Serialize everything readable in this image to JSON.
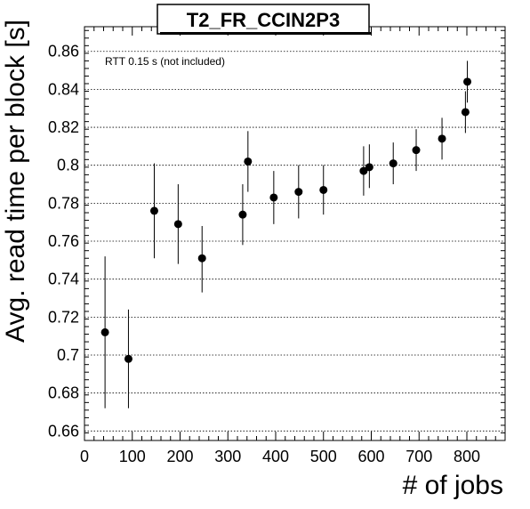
{
  "chart_data": {
    "type": "scatter",
    "title": "T2_FR_CCIN2P3",
    "xlabel": "# of jobs",
    "ylabel": "Avg. read time per block [s]",
    "annotation": "RTT 0.15 s (not included)",
    "xlim": [
      0,
      880
    ],
    "ylim": [
      0.655,
      0.873
    ],
    "x_ticks": [
      0,
      100,
      200,
      300,
      400,
      500,
      600,
      700,
      800
    ],
    "y_ticks": [
      0.66,
      0.68,
      0.7,
      0.72,
      0.74,
      0.76,
      0.78,
      0.8,
      0.82,
      0.84,
      0.86
    ],
    "x_tick_labels": [
      "0",
      "100",
      "200",
      "300",
      "400",
      "500",
      "600",
      "700",
      "800"
    ],
    "y_tick_labels": [
      "0.66",
      "0.68",
      "0.7",
      "0.72",
      "0.74",
      "0.76",
      "0.78",
      "0.8",
      "0.82",
      "0.84",
      "0.86"
    ],
    "grid_y": true,
    "grid_x": false,
    "points": [
      {
        "x": 43,
        "y": 0.712,
        "ylow": 0.672,
        "yhigh": 0.752
      },
      {
        "x": 92,
        "y": 0.698,
        "ylow": 0.672,
        "yhigh": 0.724
      },
      {
        "x": 146,
        "y": 0.776,
        "ylow": 0.751,
        "yhigh": 0.801
      },
      {
        "x": 196,
        "y": 0.769,
        "ylow": 0.748,
        "yhigh": 0.79
      },
      {
        "x": 246,
        "y": 0.751,
        "ylow": 0.733,
        "yhigh": 0.768
      },
      {
        "x": 331,
        "y": 0.774,
        "ylow": 0.758,
        "yhigh": 0.79
      },
      {
        "x": 342,
        "y": 0.802,
        "ylow": 0.786,
        "yhigh": 0.818
      },
      {
        "x": 396,
        "y": 0.783,
        "ylow": 0.769,
        "yhigh": 0.797
      },
      {
        "x": 448,
        "y": 0.786,
        "ylow": 0.772,
        "yhigh": 0.8
      },
      {
        "x": 500,
        "y": 0.787,
        "ylow": 0.774,
        "yhigh": 0.8
      },
      {
        "x": 584,
        "y": 0.797,
        "ylow": 0.784,
        "yhigh": 0.81
      },
      {
        "x": 596,
        "y": 0.799,
        "ylow": 0.788,
        "yhigh": 0.811
      },
      {
        "x": 646,
        "y": 0.801,
        "ylow": 0.79,
        "yhigh": 0.812
      },
      {
        "x": 694,
        "y": 0.808,
        "ylow": 0.797,
        "yhigh": 0.819
      },
      {
        "x": 748,
        "y": 0.814,
        "ylow": 0.803,
        "yhigh": 0.825
      },
      {
        "x": 797,
        "y": 0.828,
        "ylow": 0.817,
        "yhigh": 0.839
      },
      {
        "x": 801,
        "y": 0.844,
        "ylow": 0.833,
        "yhigh": 0.855
      }
    ]
  }
}
